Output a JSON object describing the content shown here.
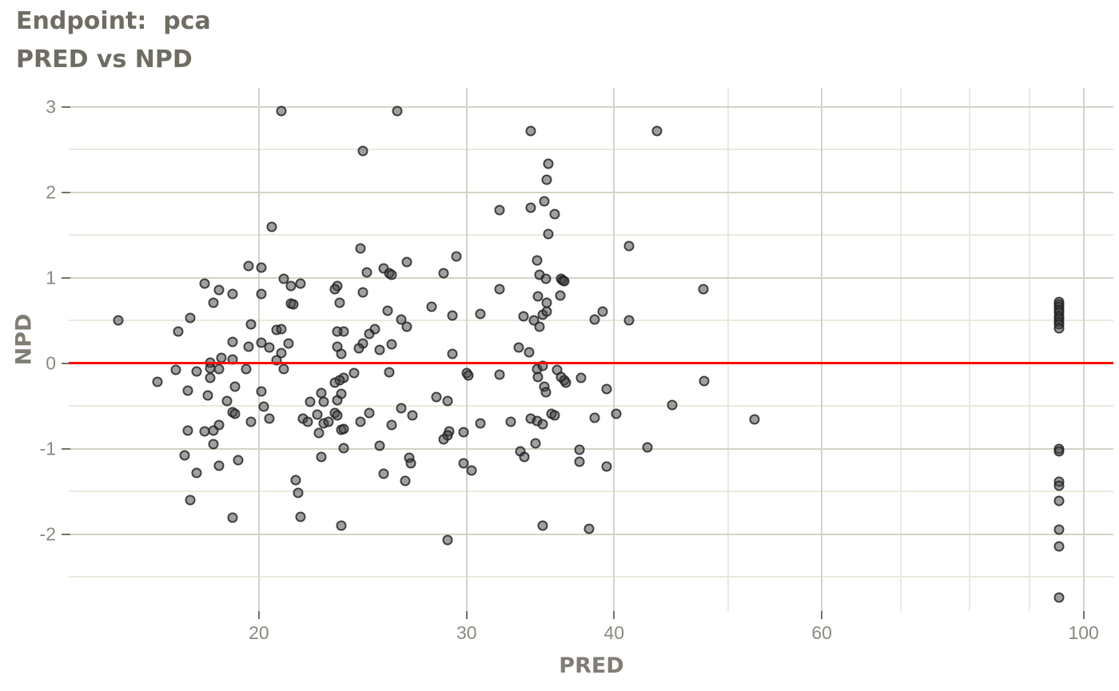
{
  "header": {
    "title": "Endpoint:  pca",
    "subtitle": "PRED vs NPD"
  },
  "chart_data": {
    "type": "scatter",
    "title": "Endpoint:  pca",
    "subtitle": "PRED vs NPD",
    "xlabel": "PRED",
    "ylabel": "NPD",
    "x_scale": "log10",
    "x_view": [
      13.8,
      106.0
    ],
    "y_view": [
      -2.9,
      3.22
    ],
    "x_ticks": [
      20,
      30,
      40,
      60,
      100
    ],
    "x_tick_labels": [
      "20",
      "30",
      "40",
      "60",
      "100"
    ],
    "x_minor_gridlines": [
      50,
      70,
      80,
      90
    ],
    "y_ticks": [
      3,
      2,
      1,
      0,
      -1,
      -2
    ],
    "y_tick_labels": [
      "3",
      "2",
      "1",
      "0",
      "-1",
      "-2"
    ],
    "y_minor_gridlines": [
      2.5,
      1.5,
      0.5,
      -0.5,
      -1.5,
      -2.5
    ],
    "grid": {
      "major_color": "#d5d3c6",
      "minor_color": "#ebe9dd"
    },
    "ref_line": {
      "y": 0,
      "color": "#fb0f0a"
    },
    "colors": {
      "background": "#ffffff",
      "title_text": "#6f6d63",
      "axis_label_text": "#807e74",
      "tick_label_text": "#8b897f",
      "tick_mark": "#75736a",
      "point_fill": "rgba(66,66,66,0.50)",
      "point_stroke": "rgba(28,28,28,0.72)"
    },
    "legend": "none",
    "points": [
      [
        20.9,
        2.95
      ],
      [
        26.2,
        2.95
      ],
      [
        34.0,
        2.72
      ],
      [
        43.5,
        2.72
      ],
      [
        24.5,
        2.48
      ],
      [
        35.2,
        2.33
      ],
      [
        35.1,
        2.15
      ],
      [
        34.9,
        1.89
      ],
      [
        34.0,
        1.82
      ],
      [
        32.0,
        1.79
      ],
      [
        35.6,
        1.74
      ],
      [
        20.5,
        1.59
      ],
      [
        35.2,
        1.51
      ],
      [
        41.2,
        1.37
      ],
      [
        24.4,
        1.34
      ],
      [
        29.4,
        1.25
      ],
      [
        34.4,
        1.2
      ],
      [
        26.7,
        1.18
      ],
      [
        19.6,
        1.14
      ],
      [
        20.1,
        1.12
      ],
      [
        25.5,
        1.11
      ],
      [
        25.8,
        1.05
      ],
      [
        25.9,
        1.03
      ],
      [
        28.7,
        1.05
      ],
      [
        24.7,
        1.06
      ],
      [
        34.6,
        1.03
      ],
      [
        21.0,
        0.99
      ],
      [
        35.0,
        0.99
      ],
      [
        36.1,
        0.99
      ],
      [
        36.2,
        0.97
      ],
      [
        36.3,
        0.96
      ],
      [
        18.0,
        0.93
      ],
      [
        21.7,
        0.93
      ],
      [
        21.3,
        0.9
      ],
      [
        23.3,
        0.9
      ],
      [
        18.5,
        0.86
      ],
      [
        23.2,
        0.87
      ],
      [
        32.0,
        0.87
      ],
      [
        47.6,
        0.87
      ],
      [
        19.0,
        0.81
      ],
      [
        20.1,
        0.81
      ],
      [
        24.5,
        0.83
      ],
      [
        34.5,
        0.78
      ],
      [
        36.0,
        0.79
      ],
      [
        18.3,
        0.71
      ],
      [
        21.3,
        0.7
      ],
      [
        21.4,
        0.69
      ],
      [
        23.4,
        0.71
      ],
      [
        35.1,
        0.71
      ],
      [
        25.7,
        0.61
      ],
      [
        28.0,
        0.66
      ],
      [
        30.8,
        0.58
      ],
      [
        29.2,
        0.56
      ],
      [
        33.5,
        0.55
      ],
      [
        34.8,
        0.57
      ],
      [
        35.1,
        0.6
      ],
      [
        39.1,
        0.6
      ],
      [
        38.5,
        0.51
      ],
      [
        34.2,
        0.5
      ],
      [
        41.2,
        0.5
      ],
      [
        15.2,
        0.5
      ],
      [
        17.5,
        0.53
      ],
      [
        26.4,
        0.51
      ],
      [
        19.7,
        0.45
      ],
      [
        26.7,
        0.43
      ],
      [
        34.6,
        0.43
      ],
      [
        17.1,
        0.37
      ],
      [
        20.7,
        0.39
      ],
      [
        20.9,
        0.4
      ],
      [
        23.6,
        0.37
      ],
      [
        23.3,
        0.37
      ],
      [
        25.1,
        0.4
      ],
      [
        24.8,
        0.34
      ],
      [
        19.0,
        0.25
      ],
      [
        20.1,
        0.24
      ],
      [
        21.2,
        0.23
      ],
      [
        24.5,
        0.23
      ],
      [
        25.9,
        0.22
      ],
      [
        19.6,
        0.19
      ],
      [
        20.4,
        0.18
      ],
      [
        23.3,
        0.19
      ],
      [
        24.3,
        0.17
      ],
      [
        25.3,
        0.16
      ],
      [
        33.2,
        0.18
      ],
      [
        33.9,
        0.13
      ],
      [
        20.9,
        0.12
      ],
      [
        23.5,
        0.11
      ],
      [
        29.2,
        0.11
      ],
      [
        18.6,
        0.06
      ],
      [
        19.0,
        0.04
      ],
      [
        20.7,
        0.03
      ],
      [
        18.2,
        0.01
      ],
      [
        18.2,
        -0.06
      ],
      [
        18.5,
        -0.07
      ],
      [
        17.0,
        -0.08
      ],
      [
        17.7,
        -0.1
      ],
      [
        19.5,
        -0.07
      ],
      [
        21.0,
        -0.07
      ],
      [
        30.0,
        -0.12
      ],
      [
        30.1,
        -0.14
      ],
      [
        24.1,
        -0.12
      ],
      [
        25.8,
        -0.11
      ],
      [
        32.0,
        -0.13
      ],
      [
        34.4,
        -0.07
      ],
      [
        34.8,
        -0.03
      ],
      [
        35.8,
        -0.08
      ],
      [
        16.4,
        -0.22
      ],
      [
        18.2,
        -0.17
      ],
      [
        23.6,
        -0.17
      ],
      [
        23.4,
        -0.2
      ],
      [
        23.2,
        -0.23
      ],
      [
        34.5,
        -0.16
      ],
      [
        36.1,
        -0.16
      ],
      [
        36.3,
        -0.2
      ],
      [
        36.4,
        -0.23
      ],
      [
        37.5,
        -0.17
      ],
      [
        47.7,
        -0.21
      ],
      [
        17.4,
        -0.32
      ],
      [
        19.1,
        -0.27
      ],
      [
        20.1,
        -0.33
      ],
      [
        34.9,
        -0.27
      ],
      [
        35.0,
        -0.34
      ],
      [
        39.4,
        -0.3
      ],
      [
        22.6,
        -0.35
      ],
      [
        18.1,
        -0.38
      ],
      [
        23.5,
        -0.36
      ],
      [
        28.3,
        -0.4
      ],
      [
        28.9,
        -0.44
      ],
      [
        18.8,
        -0.44
      ],
      [
        22.1,
        -0.45
      ],
      [
        22.7,
        -0.45
      ],
      [
        23.3,
        -0.43
      ],
      [
        44.8,
        -0.49
      ],
      [
        19.0,
        -0.57
      ],
      [
        19.1,
        -0.59
      ],
      [
        20.2,
        -0.51
      ],
      [
        22.4,
        -0.6
      ],
      [
        23.2,
        -0.58
      ],
      [
        24.8,
        -0.58
      ],
      [
        26.4,
        -0.53
      ],
      [
        27.0,
        -0.61
      ],
      [
        23.3,
        -0.61
      ],
      [
        35.4,
        -0.59
      ],
      [
        35.6,
        -0.61
      ],
      [
        40.2,
        -0.59
      ],
      [
        20.4,
        -0.65
      ],
      [
        19.7,
        -0.69
      ],
      [
        21.8,
        -0.65
      ],
      [
        22.0,
        -0.69
      ],
      [
        22.7,
        -0.7
      ],
      [
        22.9,
        -0.69
      ],
      [
        24.4,
        -0.69
      ],
      [
        25.9,
        -0.72
      ],
      [
        30.8,
        -0.7
      ],
      [
        32.7,
        -0.69
      ],
      [
        34.0,
        -0.65
      ],
      [
        34.4,
        -0.68
      ],
      [
        34.8,
        -0.71
      ],
      [
        38.5,
        -0.64
      ],
      [
        52.6,
        -0.66
      ],
      [
        17.4,
        -0.79
      ],
      [
        18.0,
        -0.8
      ],
      [
        18.3,
        -0.79
      ],
      [
        18.5,
        -0.72
      ],
      [
        23.5,
        -0.78
      ],
      [
        23.6,
        -0.77
      ],
      [
        22.5,
        -0.82
      ],
      [
        29.0,
        -0.8
      ],
      [
        28.9,
        -0.84
      ],
      [
        29.8,
        -0.81
      ],
      [
        28.7,
        -0.89
      ],
      [
        18.3,
        -0.95
      ],
      [
        23.6,
        -0.99
      ],
      [
        25.3,
        -0.97
      ],
      [
        34.3,
        -0.94
      ],
      [
        42.7,
        -0.98
      ],
      [
        17.3,
        -1.08
      ],
      [
        22.6,
        -1.1
      ],
      [
        26.8,
        -1.11
      ],
      [
        33.3,
        -1.03
      ],
      [
        33.6,
        -1.1
      ],
      [
        37.4,
        -1.01
      ],
      [
        19.2,
        -1.13
      ],
      [
        18.5,
        -1.2
      ],
      [
        26.9,
        -1.17
      ],
      [
        29.8,
        -1.17
      ],
      [
        37.4,
        -1.15
      ],
      [
        39.4,
        -1.21
      ],
      [
        17.7,
        -1.28
      ],
      [
        30.3,
        -1.26
      ],
      [
        25.5,
        -1.29
      ],
      [
        21.5,
        -1.37
      ],
      [
        26.6,
        -1.38
      ],
      [
        21.6,
        -1.52
      ],
      [
        17.5,
        -1.6
      ],
      [
        19.0,
        -1.81
      ],
      [
        21.7,
        -1.8
      ],
      [
        23.5,
        -1.9
      ],
      [
        34.8,
        -1.9
      ],
      [
        38.1,
        -1.94
      ],
      [
        28.9,
        -2.07
      ],
      [
        95.3,
        0.72
      ],
      [
        95.3,
        0.69
      ],
      [
        95.3,
        0.66
      ],
      [
        95.3,
        0.62
      ],
      [
        95.3,
        0.59
      ],
      [
        95.3,
        0.55
      ],
      [
        95.3,
        0.52
      ],
      [
        95.3,
        0.48
      ],
      [
        95.3,
        0.45
      ],
      [
        95.3,
        0.41
      ],
      [
        95.3,
        -1.0
      ],
      [
        95.3,
        -1.03
      ],
      [
        95.3,
        -1.39
      ],
      [
        95.3,
        -1.43
      ],
      [
        95.3,
        -1.61
      ],
      [
        95.3,
        -1.95
      ],
      [
        95.3,
        -2.14
      ],
      [
        95.3,
        -2.74
      ]
    ]
  }
}
